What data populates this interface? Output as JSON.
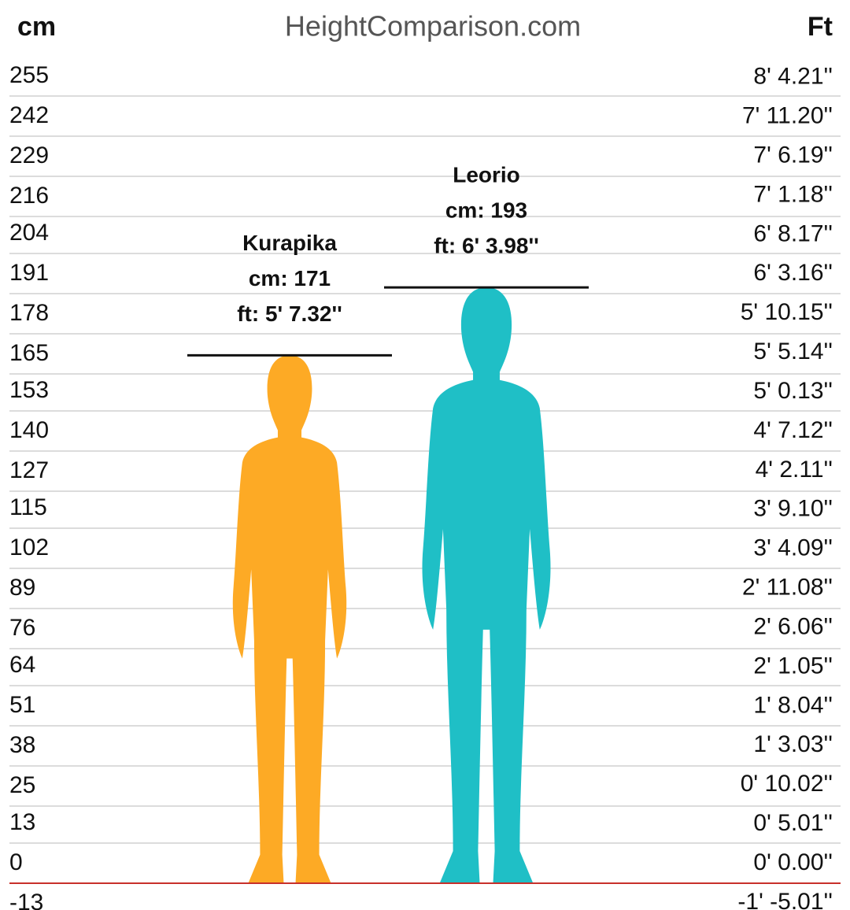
{
  "chart_data": {
    "type": "height-comparison",
    "title": "HeightComparison.com",
    "y_axis_label": "cm",
    "y2_axis_label": "Ft",
    "ylim": [
      -13,
      255
    ],
    "yticks": [
      255,
      242,
      229,
      216,
      204,
      191,
      178,
      165,
      153,
      140,
      127,
      115,
      102,
      89,
      76,
      64,
      51,
      38,
      25,
      13,
      0,
      -13
    ],
    "y2lim": [
      -5.12,
      100.39
    ],
    "y2ticks": [
      {
        "value": 100.21,
        "label": "8' 4.21''"
      },
      {
        "value": 95.2,
        "label": "7' 11.20''"
      },
      {
        "value": 90.19,
        "label": "7' 6.19''"
      },
      {
        "value": 85.18,
        "label": "7' 1.18''"
      },
      {
        "value": 80.17,
        "label": "6' 8.17''"
      },
      {
        "value": 75.16,
        "label": "6' 3.16''"
      },
      {
        "value": 70.15,
        "label": "5' 10.15''"
      },
      {
        "value": 65.14,
        "label": "5' 5.14''"
      },
      {
        "value": 60.13,
        "label": "5' 0.13''"
      },
      {
        "value": 55.12,
        "label": "4' 7.12''"
      },
      {
        "value": 50.11,
        "label": "4' 2.11''"
      },
      {
        "value": 45.1,
        "label": "3' 9.10''"
      },
      {
        "value": 40.09,
        "label": "3' 4.09''"
      },
      {
        "value": 35.08,
        "label": "2' 11.08''"
      },
      {
        "value": 30.06,
        "label": "2' 6.06''"
      },
      {
        "value": 25.05,
        "label": "2' 1.05''"
      },
      {
        "value": 20.04,
        "label": "1' 8.04''"
      },
      {
        "value": 15.03,
        "label": "1' 3.03''"
      },
      {
        "value": 10.02,
        "label": "0' 10.02''"
      },
      {
        "value": 5.01,
        "label": "0' 5.01''"
      },
      {
        "value": 0,
        "label": "0' 0.00''"
      },
      {
        "value": -5.01,
        "label": "-1' -5.01''"
      }
    ],
    "grid": true,
    "baseline_color": "#c8302a",
    "series": [
      {
        "name": "Kurapika",
        "color": "#fdaa25",
        "values": [
          171
        ],
        "value_labels": [
          "cm: 171"
        ],
        "ft_labels": [
          "ft: 5' 7.32''"
        ]
      },
      {
        "name": "Leorio",
        "color": "#1fbfc6",
        "values": [
          193
        ],
        "value_labels": [
          "cm: 193"
        ],
        "ft_labels": [
          "ft: 6' 3.98''"
        ]
      }
    ]
  }
}
